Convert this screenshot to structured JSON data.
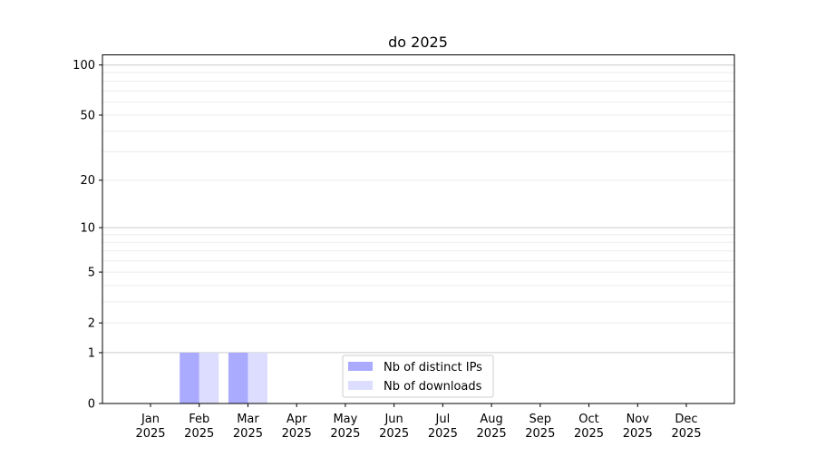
{
  "chart_data": {
    "type": "bar",
    "title": "do 2025",
    "xlabel": "",
    "ylabel": "",
    "y_scale": "log(1+y)",
    "ylim": [
      0,
      115
    ],
    "yticks": [
      0,
      1,
      2,
      5,
      10,
      20,
      50,
      100
    ],
    "grid": true,
    "legend_position": "lower-center",
    "categories": [
      {
        "month": "Jan",
        "year": "2025"
      },
      {
        "month": "Feb",
        "year": "2025"
      },
      {
        "month": "Mar",
        "year": "2025"
      },
      {
        "month": "Apr",
        "year": "2025"
      },
      {
        "month": "May",
        "year": "2025"
      },
      {
        "month": "Jun",
        "year": "2025"
      },
      {
        "month": "Jul",
        "year": "2025"
      },
      {
        "month": "Aug",
        "year": "2025"
      },
      {
        "month": "Sep",
        "year": "2025"
      },
      {
        "month": "Oct",
        "year": "2025"
      },
      {
        "month": "Nov",
        "year": "2025"
      },
      {
        "month": "Dec",
        "year": "2025"
      }
    ],
    "series": [
      {
        "name": "Nb of distinct IPs",
        "color": "#aaaaff",
        "values": [
          0,
          1,
          1,
          0,
          0,
          0,
          0,
          0,
          0,
          0,
          0,
          0
        ]
      },
      {
        "name": "Nb of downloads",
        "color": "#ddddff",
        "values": [
          0,
          1,
          1,
          0,
          0,
          0,
          0,
          0,
          0,
          0,
          0,
          0
        ]
      }
    ]
  }
}
